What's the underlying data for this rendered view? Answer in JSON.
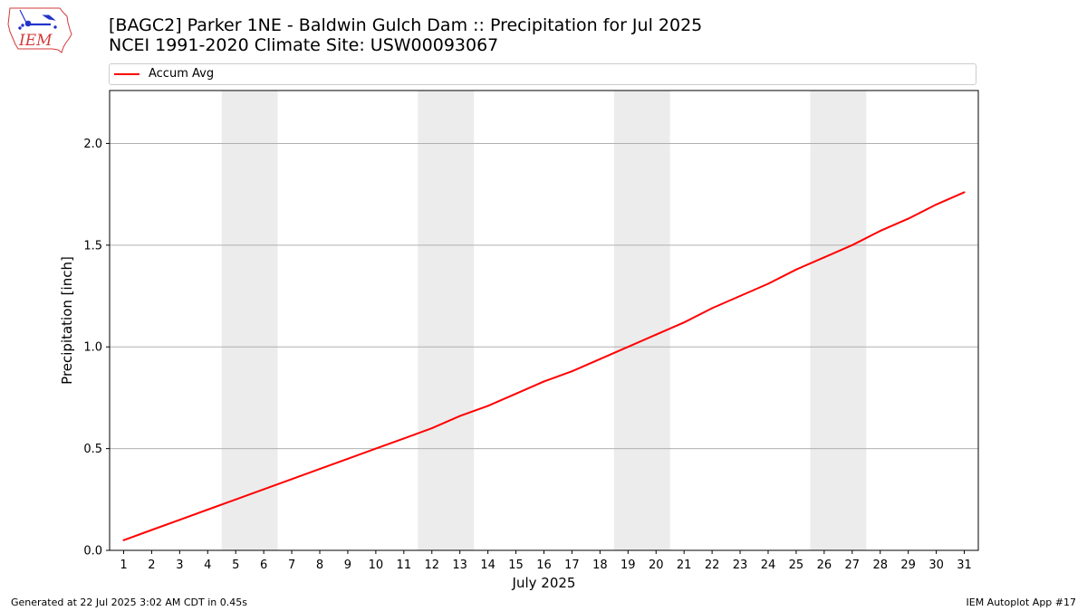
{
  "logo": {
    "text": "IEM"
  },
  "title": {
    "line1": "[BAGC2] Parker 1NE - Baldwin Gulch Dam :: Precipitation for Jul 2025",
    "line2": "NCEI 1991-2020 Climate Site: USW00093067"
  },
  "footer": {
    "left": "Generated at 22 Jul 2025 3:02 AM CDT in 0.45s",
    "right": "IEM Autoplot App #17"
  },
  "chart_data": {
    "type": "line",
    "xlabel": "July 2025",
    "ylabel": "Precipitation [inch]",
    "x": [
      1,
      2,
      3,
      4,
      5,
      6,
      7,
      8,
      9,
      10,
      11,
      12,
      13,
      14,
      15,
      16,
      17,
      18,
      19,
      20,
      21,
      22,
      23,
      24,
      25,
      26,
      27,
      28,
      29,
      30,
      31
    ],
    "xlim": [
      0.5,
      31.5
    ],
    "ylim": [
      0,
      2.26
    ],
    "yticks": [
      0.0,
      0.5,
      1.0,
      1.5,
      2.0
    ],
    "ytick_labels": [
      "0.0",
      "0.5",
      "1.0",
      "1.5",
      "2.0"
    ],
    "grid": "horizontal",
    "legend_position": "top",
    "shaded_days": [
      [
        5,
        6
      ],
      [
        12,
        13
      ],
      [
        19,
        20
      ],
      [
        26,
        27
      ]
    ],
    "shade_color": "#ececec",
    "series": [
      {
        "name": "Accum Avg",
        "color": "#ff0000",
        "values": [
          0.05,
          0.1,
          0.15,
          0.2,
          0.25,
          0.3,
          0.35,
          0.4,
          0.45,
          0.5,
          0.55,
          0.6,
          0.66,
          0.71,
          0.77,
          0.83,
          0.88,
          0.94,
          1.0,
          1.06,
          1.12,
          1.19,
          1.25,
          1.31,
          1.38,
          1.44,
          1.5,
          1.57,
          1.63,
          1.7,
          1.76
        ]
      }
    ]
  }
}
